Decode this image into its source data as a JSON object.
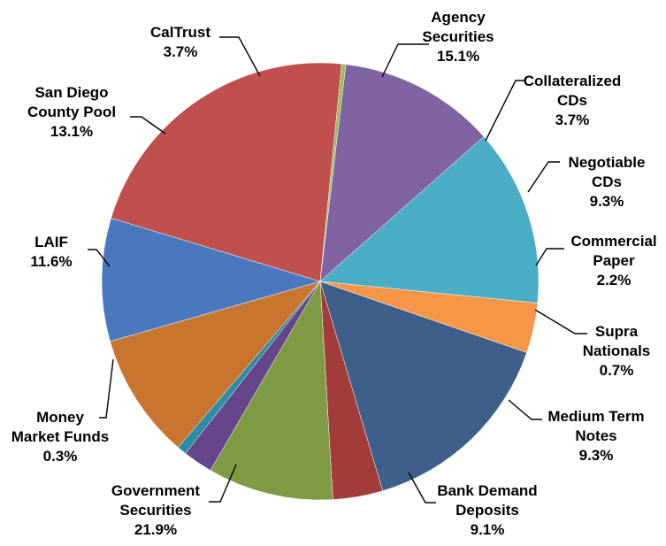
{
  "chart_data": {
    "type": "pie",
    "title": "",
    "slices": [
      {
        "label_lines": [
          "Agency",
          "Securities"
        ],
        "value_text": "15.1%",
        "value": 15.1,
        "color": "#3e5f8a"
      },
      {
        "label_lines": [
          "Collateralized",
          "CDs"
        ],
        "value_text": "3.7%",
        "value": 3.7,
        "color": "#a23c3a"
      },
      {
        "label_lines": [
          "Negotiable",
          "CDs"
        ],
        "value_text": "9.3%",
        "value": 9.3,
        "color": "#7e9a43"
      },
      {
        "label_lines": [
          "Commercial",
          "Paper"
        ],
        "value_text": "2.2%",
        "value": 2.2,
        "color": "#65468a"
      },
      {
        "label_lines": [
          "Supra",
          "Nationals"
        ],
        "value_text": "0.7%",
        "value": 0.7,
        "color": "#2e8ca6"
      },
      {
        "label_lines": [
          "Medium Term",
          "Notes"
        ],
        "value_text": "9.3%",
        "value": 9.3,
        "color": "#c87530"
      },
      {
        "label_lines": [
          "Bank Demand",
          "Deposits"
        ],
        "value_text": "9.1%",
        "value": 9.1,
        "color": "#4a78bf"
      },
      {
        "label_lines": [
          "Government",
          "Securities"
        ],
        "value_text": "21.9%",
        "value": 21.9,
        "color": "#c0504d"
      },
      {
        "label_lines": [
          "Money",
          "Market Funds"
        ],
        "value_text": "0.3%",
        "value": 0.3,
        "color": "#9bbb59"
      },
      {
        "label_lines": [
          "LAIF"
        ],
        "value_text": "11.6%",
        "value": 11.6,
        "color": "#8064a2"
      },
      {
        "label_lines": [
          "San Diego",
          "County Pool"
        ],
        "value_text": "13.1%",
        "value": 13.1,
        "color": "#4bacc6"
      },
      {
        "label_lines": [
          "CalTrust"
        ],
        "value_text": "3.7%",
        "value": 3.7,
        "color": "#f79646"
      }
    ]
  }
}
